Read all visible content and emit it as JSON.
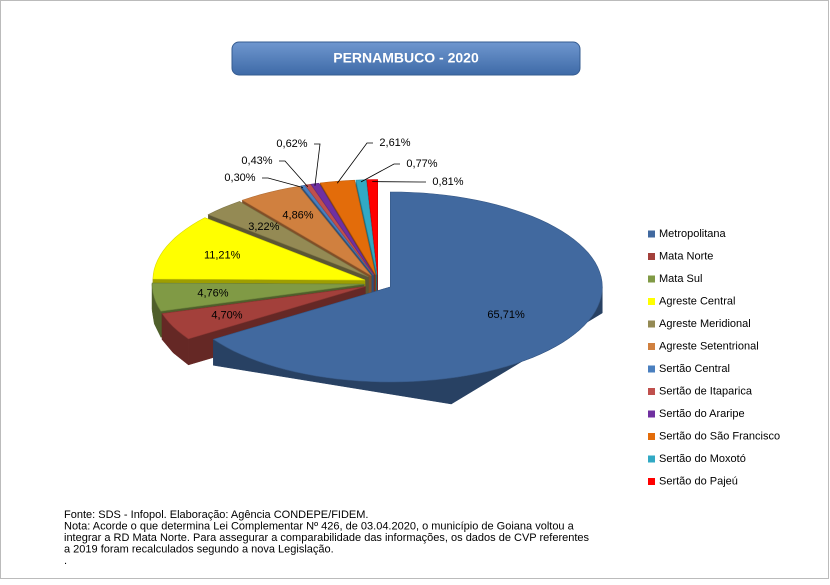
{
  "chart_data": {
    "type": "pie3d",
    "title": "PERNAMBUCO - 2020",
    "categories": [
      "Metropolitana",
      "Mata Norte",
      "Mata Sul",
      "Agreste Central",
      "Agreste Meridional",
      "Agreste Setentrional",
      "Sertão Central",
      "Sertão de Itaparica",
      "Sertão do Araripe",
      "Sertão do São Francisco",
      "Sertão do Moxotó",
      "Sertão do Pajeú"
    ],
    "values": [
      65.71,
      4.7,
      4.76,
      11.21,
      3.22,
      4.86,
      0.3,
      0.43,
      0.62,
      2.61,
      0.77,
      0.81
    ],
    "value_labels": [
      "65,71%",
      "4,70%",
      "4,76%",
      "11,21%",
      "3,22%",
      "4,86%",
      "0,30%",
      "0,43%",
      "0,62%",
      "2,61%",
      "0,77%",
      "0,81%"
    ],
    "colors": [
      "#41699f",
      "#a3403b",
      "#809a45",
      "#ffff00",
      "#948a54",
      "#d0803f",
      "#4a7fbf",
      "#c0504d",
      "#7030a0",
      "#e36c0a",
      "#31a9c4",
      "#ff0000"
    ],
    "legend": "right",
    "notes": [
      "Fonte: SDS - Infopol. Elaboração: Agência CONDEPE/FIDEM.",
      "Nota: Acorde o que determina Lei Complementar Nº 426, de 03.04.2020, o município de Goiana voltou a",
      "integrar a RD Mata Norte. Para assegurar a comparabilidade das informações, os dados de CVP referentes",
      "a 2019 foram recalculados segundo a nova Legislação.",
      "."
    ]
  }
}
